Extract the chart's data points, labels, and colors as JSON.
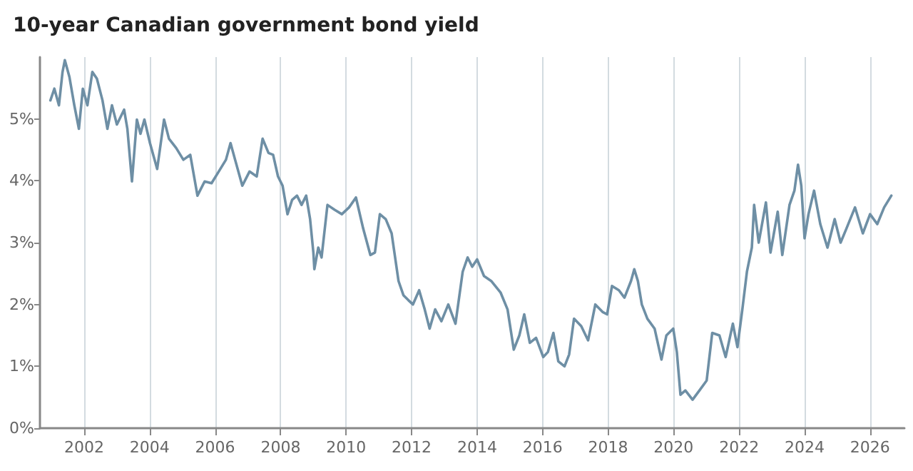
{
  "chart_data": {
    "type": "line",
    "title": "10-year Canadian government bond yield",
    "x": [
      2000.97,
      2001.09,
      2001.23,
      2001.34,
      2001.41,
      2001.55,
      2001.7,
      2001.84,
      2001.96,
      2002.1,
      2002.25,
      2002.39,
      2002.56,
      2002.71,
      2002.85,
      2003.0,
      2003.22,
      2003.32,
      2003.46,
      2003.61,
      2003.72,
      2003.84,
      2004.01,
      2004.23,
      2004.44,
      2004.59,
      2004.81,
      2005.03,
      2005.24,
      2005.46,
      2005.68,
      2005.89,
      2006.11,
      2006.33,
      2006.47,
      2006.61,
      2006.83,
      2007.05,
      2007.27,
      2007.45,
      2007.63,
      2007.77,
      2007.92,
      2008.06,
      2008.21,
      2008.35,
      2008.5,
      2008.64,
      2008.78,
      2008.9,
      2009.0,
      2009.03,
      2009.15,
      2009.25,
      2009.43,
      2009.65,
      2009.87,
      2010.09,
      2010.3,
      2010.52,
      2010.74,
      2010.88,
      2011.03,
      2011.21,
      2011.39,
      2011.6,
      2011.75,
      2011.9,
      2012.04,
      2012.23,
      2012.4,
      2012.55,
      2012.72,
      2012.91,
      2013.12,
      2013.34,
      2013.56,
      2013.71,
      2013.85,
      2014.0,
      2014.21,
      2014.43,
      2014.72,
      2014.93,
      2015.12,
      2015.29,
      2015.44,
      2015.61,
      2015.8,
      2016.02,
      2016.16,
      2016.33,
      2016.48,
      2016.67,
      2016.81,
      2016.96,
      2017.18,
      2017.39,
      2017.61,
      2017.83,
      2017.97,
      2018.12,
      2018.33,
      2018.5,
      2018.7,
      2018.8,
      2018.91,
      2019.03,
      2019.2,
      2019.42,
      2019.63,
      2019.78,
      2019.99,
      2020.1,
      2020.21,
      2020.36,
      2020.58,
      2020.79,
      2021.01,
      2021.18,
      2021.4,
      2021.59,
      2021.81,
      2021.95,
      2022.1,
      2022.24,
      2022.39,
      2022.46,
      2022.6,
      2022.82,
      2022.96,
      2023.18,
      2023.32,
      2023.54,
      2023.69,
      2023.8,
      2023.9,
      2024.0,
      2024.12,
      2024.29,
      2024.48,
      2024.7,
      2024.92,
      2025.1,
      2025.28,
      2025.54,
      2025.78,
      2026.0,
      2026.22,
      2026.43,
      2026.65
    ],
    "series": [
      {
        "color": "#6e8fa5",
        "values": [
          5.3,
          5.49,
          5.22,
          5.76,
          5.95,
          5.68,
          5.22,
          4.84,
          5.49,
          5.22,
          5.76,
          5.65,
          5.3,
          4.84,
          5.22,
          4.91,
          5.15,
          4.84,
          3.99,
          4.99,
          4.76,
          4.99,
          4.61,
          4.19,
          4.99,
          4.68,
          4.53,
          4.34,
          4.42,
          3.76,
          3.99,
          3.96,
          4.15,
          4.34,
          4.61,
          4.34,
          3.92,
          4.15,
          4.07,
          4.68,
          4.45,
          4.42,
          4.07,
          3.92,
          3.46,
          3.69,
          3.76,
          3.61,
          3.76,
          3.38,
          2.84,
          2.57,
          2.92,
          2.76,
          3.61,
          3.53,
          3.46,
          3.57,
          3.73,
          3.23,
          2.8,
          2.84,
          3.46,
          3.38,
          3.15,
          2.38,
          2.15,
          2.07,
          2.0,
          2.23,
          1.92,
          1.61,
          1.92,
          1.73,
          2.0,
          1.69,
          2.53,
          2.76,
          2.61,
          2.73,
          2.46,
          2.38,
          2.19,
          1.92,
          1.27,
          1.5,
          1.84,
          1.38,
          1.46,
          1.15,
          1.23,
          1.54,
          1.08,
          1.0,
          1.19,
          1.77,
          1.65,
          1.42,
          2.0,
          1.88,
          1.84,
          2.3,
          2.23,
          2.11,
          2.38,
          2.57,
          2.38,
          2.0,
          1.77,
          1.61,
          1.11,
          1.5,
          1.61,
          1.23,
          0.54,
          0.61,
          0.46,
          0.61,
          0.77,
          1.54,
          1.5,
          1.15,
          1.69,
          1.31,
          1.92,
          2.53,
          2.92,
          3.61,
          3.0,
          3.65,
          2.84,
          3.5,
          2.8,
          3.61,
          3.84,
          4.26,
          3.92,
          3.07,
          3.46,
          3.84,
          3.3,
          2.92,
          3.38,
          3.0,
          3.23,
          3.57,
          3.15,
          3.46,
          3.3,
          3.57,
          3.76
        ]
      }
    ],
    "xlim": [
      2000.65,
      2027.05
    ],
    "xticks": [
      2002,
      2004,
      2006,
      2008,
      2010,
      2012,
      2014,
      2016,
      2018,
      2020,
      2022,
      2024,
      2026
    ],
    "ylim": [
      0,
      6
    ],
    "yticks": [
      {
        "value": 0,
        "label": "0%"
      },
      {
        "value": 1,
        "label": "1%"
      },
      {
        "value": 2,
        "label": "2%"
      },
      {
        "value": 3,
        "label": "3%"
      },
      {
        "value": 4,
        "label": "4%"
      },
      {
        "value": 5,
        "label": "5%"
      }
    ],
    "grid": "x",
    "marker": "none",
    "line_style": "solid"
  }
}
